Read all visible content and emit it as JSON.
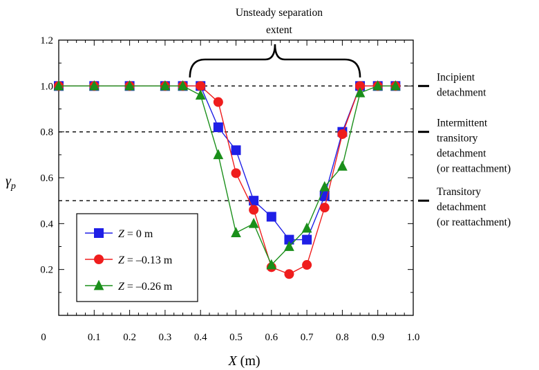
{
  "chart_data": {
    "type": "line",
    "title": "",
    "xlabel": {
      "var": "X",
      "unit": "(m)"
    },
    "ylabel": {
      "var": "γ",
      "sub": "p"
    },
    "xlim": [
      0,
      1.0
    ],
    "ylim": [
      0,
      1.2
    ],
    "xticks": [
      0,
      0.1,
      0.2,
      0.3,
      0.4,
      0.5,
      0.6,
      0.7,
      0.8,
      0.9,
      1.0
    ],
    "xtick_labels": [
      "0",
      "0.1",
      "0.2",
      "0.3",
      "0.4",
      "0.5",
      "0.6",
      "0.7",
      "0.8",
      "0.9",
      "1.0"
    ],
    "yticks": [
      0.2,
      0.4,
      0.6,
      0.8,
      1.0,
      1.2
    ],
    "ytick_labels": [
      "0.2",
      "0.4",
      "0.6",
      "0.8",
      "1.0",
      "1.2"
    ],
    "grid": false,
    "legend_position": "bottom-left",
    "series": [
      {
        "name": {
          "var": "Z",
          "rest": " = 0 m"
        },
        "color": "#1f1fe6",
        "marker": "square",
        "x": [
          0,
          0.1,
          0.2,
          0.3,
          0.35,
          0.4,
          0.45,
          0.5,
          0.55,
          0.6,
          0.65,
          0.7,
          0.75,
          0.8,
          0.85,
          0.9,
          0.95
        ],
        "y": [
          1.0,
          1.0,
          1.0,
          1.0,
          1.0,
          1.0,
          0.82,
          0.72,
          0.5,
          0.43,
          0.33,
          0.33,
          0.52,
          0.8,
          1.0,
          1.0,
          1.0
        ]
      },
      {
        "name": {
          "var": "Z",
          "rest": " = –0.13 m"
        },
        "color": "#ef1d1d",
        "marker": "circle",
        "x": [
          0,
          0.1,
          0.2,
          0.3,
          0.35,
          0.4,
          0.45,
          0.5,
          0.55,
          0.6,
          0.65,
          0.7,
          0.75,
          0.8,
          0.85,
          0.9,
          0.95
        ],
        "y": [
          1.0,
          1.0,
          1.0,
          1.0,
          1.0,
          1.0,
          0.93,
          0.62,
          0.46,
          0.21,
          0.18,
          0.22,
          0.47,
          0.79,
          1.0,
          1.0,
          1.0
        ]
      },
      {
        "name": {
          "var": "Z",
          "rest": " = –0.26 m"
        },
        "color": "#1a8f1a",
        "marker": "triangle",
        "x": [
          0,
          0.1,
          0.2,
          0.3,
          0.35,
          0.4,
          0.45,
          0.5,
          0.55,
          0.6,
          0.65,
          0.7,
          0.75,
          0.8,
          0.85,
          0.9,
          0.95
        ],
        "y": [
          1.0,
          1.0,
          1.0,
          1.0,
          1.0,
          0.96,
          0.7,
          0.36,
          0.4,
          0.22,
          0.3,
          0.38,
          0.56,
          0.65,
          0.97,
          1.0,
          1.0
        ]
      }
    ],
    "reference_lines": [
      {
        "y": 1.0,
        "label_lines": [
          "Incipient",
          "detachment"
        ]
      },
      {
        "y": 0.8,
        "label_lines": [
          "Intermittent",
          "transitory",
          "detachment",
          "(or reattachment)"
        ]
      },
      {
        "y": 0.5,
        "label_lines": [
          "Transitory",
          "detachment",
          "(or reattachment)"
        ]
      }
    ],
    "bracket": {
      "x_start": 0.37,
      "x_end": 0.85,
      "label_lines": [
        "Unsteady separation",
        "extent"
      ]
    }
  }
}
